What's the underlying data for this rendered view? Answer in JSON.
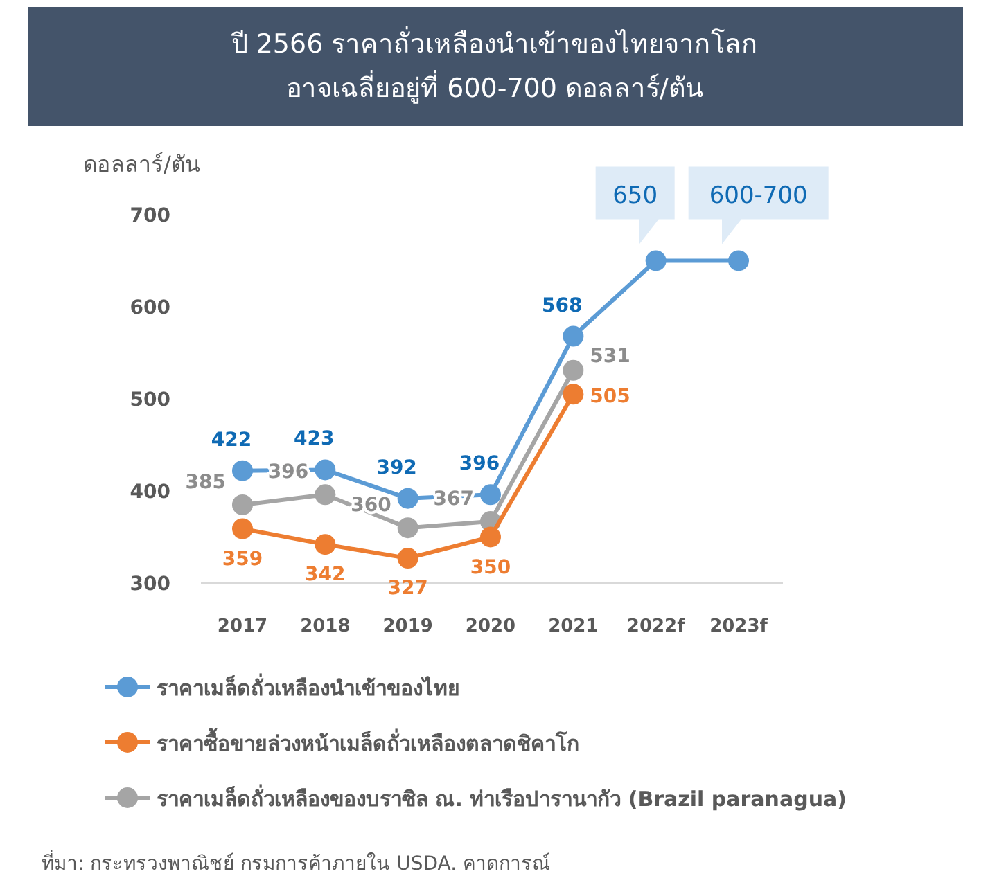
{
  "chart_data": {
    "type": "line",
    "title": "ปี 2566 ราคาถั่วเหลืองนำเข้าของไทยจากโลก\nอาจเฉลี่ยอยู่ที่ 600-700 ดอลลาร์/ตัน",
    "ylabel": "ดอลลาร์/ตัน",
    "categories": [
      "2017",
      "2018",
      "2019",
      "2020",
      "2021",
      "2022f",
      "2023f"
    ],
    "ylim": [
      300,
      700
    ],
    "yticks": [
      300,
      400,
      500,
      600,
      700
    ],
    "marker": "circle",
    "legend": "bottom",
    "series": [
      {
        "name": "ราคาเมล็ดถั่วเหลืองนำเข้าของไทย",
        "color": "#5b9bd5",
        "values": [
          422,
          423,
          392,
          396,
          568,
          650,
          650
        ],
        "value_labels": [
          "422",
          "423",
          "392",
          "396",
          "568",
          "650",
          "600-700"
        ]
      },
      {
        "name": "ราคาซื้อขายล่วงหน้าเมล็ดถั่วเหลืองตลาดชิคาโก",
        "color": "#ed7d31",
        "values": [
          359,
          342,
          327,
          350,
          505,
          null,
          null
        ],
        "value_labels": [
          "359",
          "342",
          "327",
          "350",
          "505",
          null,
          null
        ]
      },
      {
        "name": "ราคาเมล็ดถั่วเหลืองของบราซิล ณ. ท่าเรือปารานากัว (Brazil paranagua)",
        "color": "#a5a5a5",
        "values": [
          385,
          396,
          360,
          367,
          531,
          null,
          null
        ],
        "value_labels": [
          "385",
          "396",
          "360",
          "367",
          "531",
          null,
          null
        ]
      }
    ],
    "annotations": [
      "ที่มา: กระทรวงพาณิชย์ กรมการค้าภายใน USDA. คาดการณ์"
    ]
  }
}
